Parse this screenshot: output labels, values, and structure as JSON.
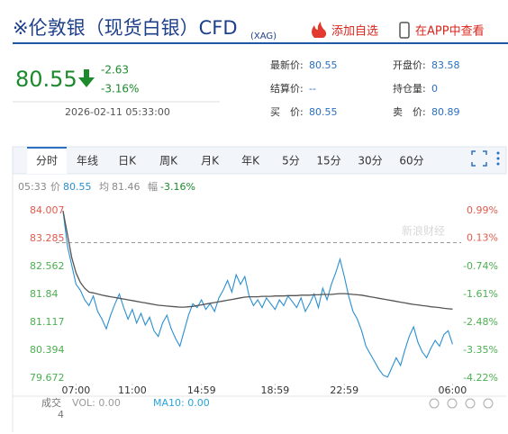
{
  "header": {
    "title": "※伦敦银（现货白银）CFD",
    "subtitle": "(XAG)",
    "add_watch": "添加自选",
    "app_view": "在APP中查看"
  },
  "quote": {
    "price": "80.55",
    "change": "-2.63",
    "change_pct": "-3.16%",
    "time": "2026-02-11 05:33:00"
  },
  "fields": [
    {
      "label": "最新价:",
      "value": "80.55"
    },
    {
      "label": "开盘价:",
      "value": "83.58"
    },
    {
      "label": "结算价:",
      "value": "--"
    },
    {
      "label": "持仓量:",
      "value": "0"
    },
    {
      "label": "买　价:",
      "value": "80.55"
    },
    {
      "label": "卖　价:",
      "value": "80.89"
    }
  ],
  "tabs": {
    "items": [
      "分时",
      "年线",
      "日K",
      "周K",
      "月K",
      "年K",
      "5分",
      "15分",
      "30分",
      "60分"
    ],
    "active": 0
  },
  "info": {
    "time": "05:33",
    "price_label": "价",
    "price": "80.55",
    "avg_label": "均",
    "avg": "81.46",
    "amp_label": "幅",
    "amp": "-3.16%"
  },
  "chart_data": {
    "type": "line",
    "watermark": "新浪财经",
    "reference_line": 83.18,
    "xlim": [
      0,
      92
    ],
    "xticks": [
      {
        "value": 3,
        "label": "07:00"
      },
      {
        "value": 16,
        "label": "11:00"
      },
      {
        "value": 32,
        "label": "14:59"
      },
      {
        "value": 49,
        "label": "18:59"
      },
      {
        "value": 65,
        "label": "22:59"
      },
      {
        "value": 90,
        "label": "06:00"
      }
    ],
    "ylim": [
      79.672,
      84.007
    ],
    "yticks": [
      79.672,
      80.394,
      81.117,
      81.84,
      82.562,
      83.285,
      84.007
    ],
    "y2lim": [
      -4.22,
      0.99
    ],
    "y2ticks": [
      {
        "value": -4.22,
        "label": "-4.22%"
      },
      {
        "value": -3.35,
        "label": "-3.35%"
      },
      {
        "value": -2.48,
        "label": "-2.48%"
      },
      {
        "value": -1.61,
        "label": "-1.61%"
      },
      {
        "value": -0.74,
        "label": "-0.74%"
      },
      {
        "value": 0.13,
        "label": "0.13%"
      },
      {
        "value": 0.99,
        "label": "0.99%"
      }
    ],
    "series": [
      {
        "color": "#2a8fd0",
        "values": [
          84.0,
          83.1,
          82.6,
          82.1,
          81.95,
          81.7,
          81.55,
          81.8,
          81.4,
          81.2,
          80.95,
          81.3,
          81.6,
          81.85,
          81.5,
          81.2,
          81.45,
          81.1,
          81.35,
          81.05,
          81.25,
          80.9,
          80.75,
          81.1,
          81.3,
          80.95,
          80.7,
          80.5,
          80.9,
          81.3,
          81.6,
          81.5,
          81.7,
          81.45,
          81.6,
          81.4,
          81.75,
          81.95,
          82.2,
          81.9,
          82.35,
          82.1,
          82.3,
          81.8,
          81.55,
          81.7,
          81.5,
          81.75,
          81.6,
          81.45,
          81.7,
          81.55,
          81.8,
          81.65,
          81.5,
          81.75,
          81.4,
          81.6,
          81.85,
          81.5,
          82.0,
          81.7,
          82.1,
          82.4,
          82.75,
          82.3,
          81.8,
          81.4,
          81.2,
          80.9,
          80.5,
          80.3,
          80.1,
          79.9,
          79.75,
          79.7,
          79.95,
          80.2,
          80.0,
          80.4,
          80.75,
          81.0,
          80.6,
          80.35,
          80.2,
          80.45,
          80.65,
          80.5,
          80.8,
          80.9,
          80.55
        ]
      },
      {
        "color": "#555555",
        "values": [
          84.0,
          83.4,
          82.8,
          82.4,
          82.15,
          82.0,
          81.9,
          81.88,
          81.85,
          81.82,
          81.8,
          81.78,
          81.76,
          81.74,
          81.72,
          81.7,
          81.68,
          81.66,
          81.64,
          81.62,
          81.6,
          81.58,
          81.56,
          81.55,
          81.54,
          81.53,
          81.52,
          81.51,
          81.51,
          81.52,
          81.53,
          81.55,
          81.57,
          81.59,
          81.61,
          81.63,
          81.65,
          81.67,
          81.69,
          81.71,
          81.73,
          81.75,
          81.77,
          81.78,
          81.78,
          81.78,
          81.79,
          81.79,
          81.79,
          81.8,
          81.8,
          81.8,
          81.81,
          81.81,
          81.81,
          81.82,
          81.82,
          81.82,
          81.83,
          81.83,
          81.84,
          81.84,
          81.84,
          81.85,
          81.86,
          81.86,
          81.85,
          81.84,
          81.83,
          81.82,
          81.8,
          81.78,
          81.76,
          81.74,
          81.72,
          81.7,
          81.68,
          81.66,
          81.64,
          81.62,
          81.6,
          81.58,
          81.57,
          81.55,
          81.54,
          81.52,
          81.51,
          81.5,
          81.48,
          81.47,
          81.46
        ]
      }
    ]
  },
  "footer": {
    "volume_label": "成交",
    "volume_value": "4",
    "vol": "VOL: 0.00",
    "ma10": "MA10: 0.00"
  }
}
